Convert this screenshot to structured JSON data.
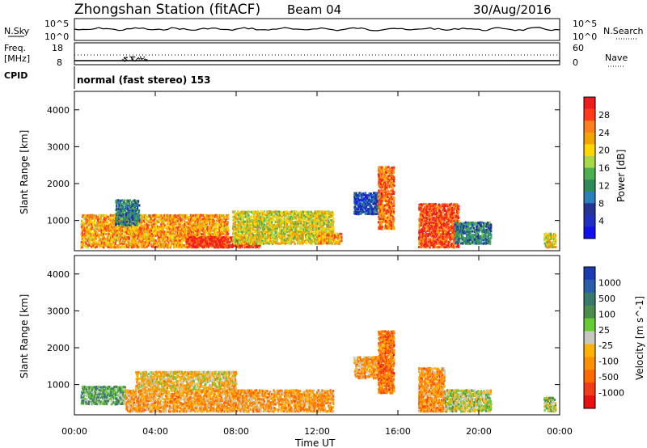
{
  "header": {
    "station": "Zhongshan Station (fitACF)",
    "beam": "Beam 04",
    "date": "30/Aug/2016"
  },
  "noise_panel": {
    "left_label": "N.Sky",
    "left_ticks": [
      "10^5",
      "10^0"
    ],
    "right_ticks": [
      "10^5",
      "10^0"
    ],
    "right_label": "N.Search"
  },
  "freq_panel": {
    "left_label_1": "Freq.",
    "left_label_2": "[MHz]",
    "left_ticks": [
      "18",
      "8"
    ],
    "right_ticks": [
      "60",
      "0"
    ],
    "right_label": "Nave"
  },
  "cpid_panel": {
    "label": "CPID",
    "value": "normal (fast stereo) 153"
  },
  "power_panel": {
    "ylabel": "Slant Range [km]",
    "yticks": [
      "4000",
      "3000",
      "2000",
      "1000"
    ],
    "colorbar_label": "Power [dB]",
    "colorbar_ticks": [
      "28",
      "24",
      "20",
      "16",
      "12",
      "8",
      "4"
    ],
    "colorbar_colors": [
      "#ee1c1c",
      "#ff3b1a",
      "#ff7f1f",
      "#f2a400",
      "#ffd700",
      "#a8d84a",
      "#4caf50",
      "#2e8b57",
      "#2c7fb8",
      "#253494",
      "#1f2fbf",
      "#1010ee"
    ]
  },
  "velocity_panel": {
    "ylabel": "Slant Range [km]",
    "yticks": [
      "4000",
      "3000",
      "2000",
      "1000"
    ],
    "colorbar_label": "Velocity  [m s^-1]",
    "colorbar_ticks": [
      "1000",
      "500",
      "100",
      "25",
      "-25",
      "-100",
      "-500",
      "-1000"
    ],
    "colorbar_colors": [
      "#1a3cb0",
      "#2a5ea8",
      "#3a7a6a",
      "#4c8c4c",
      "#66cc33",
      "#c8c8c0",
      "#ffb300",
      "#ff9000",
      "#ff6a00",
      "#f03c1a",
      "#e81010"
    ]
  },
  "x_axis": {
    "label": "Time UT",
    "ticks": [
      "00:00",
      "04:00",
      "08:00",
      "12:00",
      "16:00",
      "20:00",
      "00:00"
    ]
  },
  "chart_data": {
    "type": "heatmap",
    "title": "Zhongshan Station (fitACF) Beam 04 30/Aug/2016",
    "xlabel": "Time UT",
    "ylabel": "Slant Range [km]",
    "x_range_hours": [
      0,
      24
    ],
    "y_range_km": [
      180,
      4500
    ],
    "panels": [
      {
        "name": "Power [dB]",
        "colorbar_range": [
          0,
          30
        ],
        "scatter_regions": [
          {
            "t0": 0.3,
            "t1": 7.6,
            "r0": 300,
            "r1": 1200,
            "value": 22
          },
          {
            "t0": 5.5,
            "t1": 9.2,
            "r0": 300,
            "r1": 600,
            "value": 28
          },
          {
            "t0": 7.8,
            "t1": 12.8,
            "r0": 400,
            "r1": 1300,
            "value": 18
          },
          {
            "t0": 2.0,
            "t1": 3.2,
            "r0": 900,
            "r1": 1600,
            "value": 10
          },
          {
            "t0": 12.0,
            "t1": 13.2,
            "r0": 400,
            "r1": 700,
            "value": 22
          },
          {
            "t0": 13.8,
            "t1": 15.2,
            "r0": 1200,
            "r1": 1800,
            "value": 6
          },
          {
            "t0": 15.0,
            "t1": 15.8,
            "r0": 800,
            "r1": 2500,
            "value": 24
          },
          {
            "t0": 17.0,
            "t1": 19.0,
            "r0": 300,
            "r1": 1500,
            "value": 26
          },
          {
            "t0": 18.8,
            "t1": 20.6,
            "r0": 400,
            "r1": 1000,
            "value": 10
          },
          {
            "t0": 23.2,
            "t1": 23.8,
            "r0": 300,
            "r1": 700,
            "value": 18
          }
        ]
      },
      {
        "name": "Velocity [m s^-1]",
        "colorbar_range": [
          -1000,
          1000
        ],
        "scatter_regions": [
          {
            "t0": 0.3,
            "t1": 2.5,
            "r0": 500,
            "r1": 1000,
            "value": 300
          },
          {
            "t0": 2.5,
            "t1": 12.8,
            "r0": 300,
            "r1": 900,
            "value": -300
          },
          {
            "t0": 3.0,
            "t1": 8.0,
            "r0": 900,
            "r1": 1400,
            "value": -150
          },
          {
            "t0": 13.8,
            "t1": 15.2,
            "r0": 1200,
            "r1": 1800,
            "value": -300
          },
          {
            "t0": 15.0,
            "t1": 15.8,
            "r0": 800,
            "r1": 2500,
            "value": -500
          },
          {
            "t0": 17.0,
            "t1": 18.3,
            "r0": 300,
            "r1": 1500,
            "value": -350
          },
          {
            "t0": 18.3,
            "t1": 20.6,
            "r0": 300,
            "r1": 900,
            "value": 30
          },
          {
            "t0": 23.2,
            "t1": 23.8,
            "r0": 300,
            "r1": 700,
            "value": 80
          }
        ]
      }
    ],
    "grid": false
  }
}
